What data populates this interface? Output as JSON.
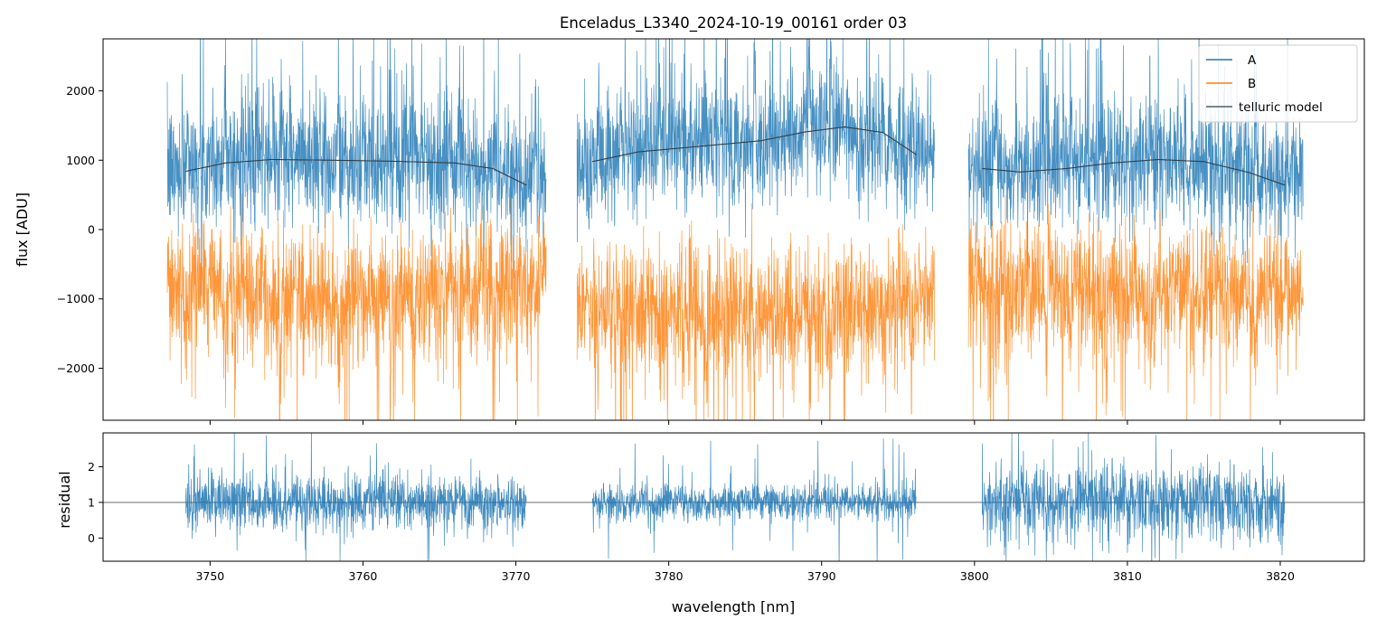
{
  "title": "Enceladus_L3340_2024-10-19_00161  order 03",
  "chart_data": [
    {
      "type": "line",
      "panel": "top",
      "title": "Enceladus_L3340_2024-10-19_00161  order 03",
      "xlabel": "",
      "ylabel": "flux [ADU]",
      "xlim": [
        3743,
        3825.5
      ],
      "ylim": [
        -2750,
        2750
      ],
      "x_ticks": [
        3750,
        3760,
        3770,
        3780,
        3790,
        3800,
        3810,
        3820
      ],
      "y_ticks": [
        2000,
        1000,
        0,
        -1000,
        -2000
      ],
      "y_tick_labels": [
        "2000",
        "1000",
        "0",
        "−1000",
        "−2000"
      ],
      "legend": {
        "position": "top-right",
        "entries": [
          {
            "label": "A",
            "color": "#1f77b4"
          },
          {
            "label": "B",
            "color": "#ff7f0e"
          },
          {
            "label": "telluric model",
            "color": "#2f3e46"
          }
        ]
      },
      "segments_x": [
        [
          3747.2,
          3772.0
        ],
        [
          3774.0,
          3797.4
        ],
        [
          3799.6,
          3821.5
        ]
      ],
      "series": [
        {
          "name": "A",
          "color": "#1f77b4",
          "style": "noisy spectrum",
          "baseline": [
            [
              3747.2,
              850
            ],
            [
              3754,
              1000
            ],
            [
              3760,
              980
            ],
            [
              3766,
              950
            ],
            [
              3771.5,
              640
            ],
            [
              3774.2,
              960
            ],
            [
              3780,
              1180
            ],
            [
              3786,
              1300
            ],
            [
              3791,
              1480
            ],
            [
              3796,
              1080
            ],
            [
              3797.3,
              1050
            ],
            [
              3799.8,
              880
            ],
            [
              3803,
              840
            ],
            [
              3808,
              960
            ],
            [
              3812,
              1020
            ],
            [
              3816,
              900
            ],
            [
              3821.4,
              620
            ]
          ],
          "noise_sigma": 460,
          "dips_x": [
            3748.5,
            3751.0,
            3754.6,
            3758.4,
            3761.8,
            3763.3,
            3766.3,
            3768.6,
            3771.3,
            3775.4,
            3776.9,
            3779.4,
            3782.4,
            3785.6,
            3789.2,
            3790.6,
            3794.0,
            3795.9,
            3801.4,
            3804.7,
            3806.3,
            3811.5,
            3814.2,
            3818.4
          ]
        },
        {
          "name": "B",
          "color": "#ff7f0e",
          "style": "noisy spectrum",
          "baseline": [
            [
              3747.2,
              -800
            ],
            [
              3755,
              -950
            ],
            [
              3763,
              -1000
            ],
            [
              3771.5,
              -750
            ],
            [
              3774.2,
              -1100
            ],
            [
              3782,
              -1150
            ],
            [
              3790,
              -1200
            ],
            [
              3797.3,
              -950
            ],
            [
              3799.8,
              -800
            ],
            [
              3810,
              -900
            ],
            [
              3821.4,
              -800
            ]
          ],
          "noise_sigma": 470,
          "dips_x": [
            3748.5,
            3751.0,
            3754.6,
            3758.4,
            3761.8,
            3763.3,
            3766.3,
            3768.6,
            3771.3,
            3775.4,
            3776.9,
            3779.4,
            3782.4,
            3785.6,
            3789.2,
            3790.6,
            3794.0,
            3795.9,
            3801.4,
            3804.7,
            3806.3,
            3811.5,
            3814.2,
            3818.4
          ]
        },
        {
          "name": "telluric model",
          "color": "#2f3e46",
          "style": "smooth",
          "segments": [
            [
              [
                3748.4,
                840
              ],
              [
                3751,
                960
              ],
              [
                3754,
                1010
              ],
              [
                3758,
                1000
              ],
              [
                3762,
                985
              ],
              [
                3766,
                960
              ],
              [
                3768.5,
                880
              ],
              [
                3770.7,
                640
              ]
            ],
            [
              [
                3775.0,
                980
              ],
              [
                3778,
                1120
              ],
              [
                3782,
                1200
              ],
              [
                3786,
                1280
              ],
              [
                3789,
                1410
              ],
              [
                3791.5,
                1480
              ],
              [
                3794,
                1400
              ],
              [
                3796.2,
                1080
              ]
            ],
            [
              [
                3800.5,
                880
              ],
              [
                3803,
                830
              ],
              [
                3806,
                880
              ],
              [
                3809,
                960
              ],
              [
                3812,
                1010
              ],
              [
                3815,
                980
              ],
              [
                3818,
                820
              ],
              [
                3820.3,
                640
              ]
            ]
          ]
        }
      ]
    },
    {
      "type": "line",
      "panel": "bottom",
      "xlabel": "wavelength [nm]",
      "ylabel": "residual",
      "xlim": [
        3743,
        3825.5
      ],
      "ylim": [
        -0.65,
        2.95
      ],
      "x_ticks": [
        3750,
        3760,
        3770,
        3780,
        3790,
        3800,
        3810,
        3820
      ],
      "x_tick_labels": [
        "3750",
        "3760",
        "3770",
        "3780",
        "3790",
        "3800",
        "3810",
        "3820"
      ],
      "y_ticks": [
        2,
        1,
        0
      ],
      "y_tick_labels": [
        "2",
        "1",
        "0"
      ],
      "reference_line_y": 1,
      "segments_x": [
        [
          3748.4,
          3770.7
        ],
        [
          3775.0,
          3796.2
        ],
        [
          3800.5,
          3820.3
        ]
      ],
      "series": [
        {
          "name": "residual",
          "color": "#1f77b4",
          "style": "noisy spectrum",
          "level": 1.0,
          "noise_sigma": 0.38,
          "segment_noise_sigma": [
            0.38,
            0.26,
            0.55
          ]
        }
      ]
    }
  ]
}
